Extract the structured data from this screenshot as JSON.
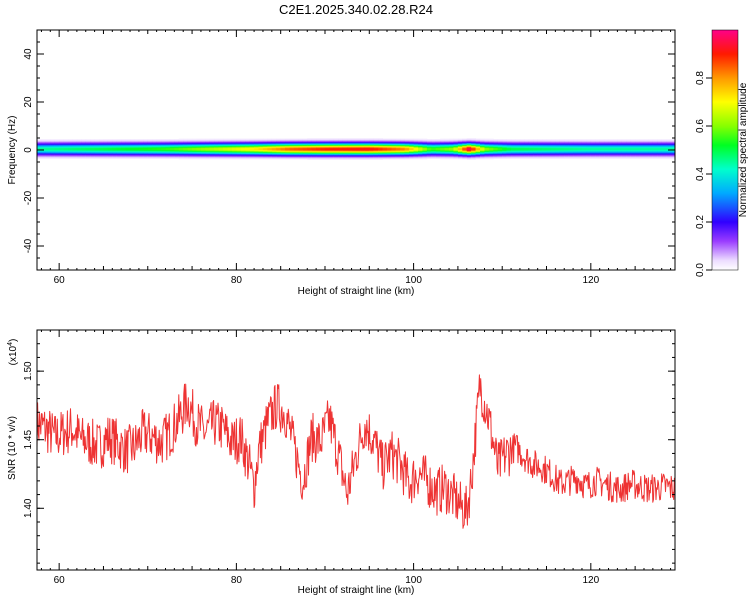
{
  "title": "C2E1.2025.340.02.28.R24",
  "chart_data": [
    {
      "type": "heatmap",
      "xlabel": "Height of straight line (km)",
      "ylabel": "Frequency (Hz)",
      "xlim": [
        57.5,
        129.5
      ],
      "ylim": [
        -50,
        50
      ],
      "x_ticks": [
        "60",
        "80",
        "100",
        "120"
      ],
      "y_ticks": [
        "40",
        "20",
        "0",
        "-20",
        "-40"
      ],
      "colorbar": {
        "label": "Normalized spectral amplitude",
        "range": [
          0,
          1
        ],
        "ticks": [
          "0.0",
          "0.2",
          "0.4",
          "0.6",
          "0.8"
        ]
      },
      "band": {
        "center_hz": 0.5,
        "halfwidth_hz": 3,
        "amplitude_profile": [
          {
            "x": 57.5,
            "v": 0.45
          },
          {
            "x": 65,
            "v": 0.5
          },
          {
            "x": 72,
            "v": 0.55
          },
          {
            "x": 78,
            "v": 0.65
          },
          {
            "x": 82,
            "v": 0.72
          },
          {
            "x": 86,
            "v": 0.85
          },
          {
            "x": 90,
            "v": 0.9
          },
          {
            "x": 95,
            "v": 0.92
          },
          {
            "x": 99,
            "v": 0.82
          },
          {
            "x": 102,
            "v": 0.55
          },
          {
            "x": 104.5,
            "v": 0.62
          },
          {
            "x": 106.3,
            "v": 0.97
          },
          {
            "x": 108,
            "v": 0.62
          },
          {
            "x": 111,
            "v": 0.5
          },
          {
            "x": 120,
            "v": 0.45
          },
          {
            "x": 129.5,
            "v": 0.45
          }
        ]
      }
    },
    {
      "type": "line",
      "xlabel": "Height of straight line (km)",
      "ylabel": "SNR (10 * v/v)",
      "yscale_label": "(x10",
      "yscale_exp": "4",
      "xlim": [
        57.5,
        129.5
      ],
      "ylim": [
        1.355,
        1.53
      ],
      "x_ticks": [
        "60",
        "80",
        "100",
        "120"
      ],
      "y_ticks": [
        "1.50",
        "1.45",
        "1.40"
      ],
      "series": [
        {
          "color": "#ee3333",
          "x": [
            57.5,
            58.5,
            59.5,
            60.5,
            61.5,
            62.5,
            63.5,
            64.5,
            65.5,
            66.5,
            67.5,
            68.5,
            69.5,
            70.5,
            71.5,
            72.5,
            73.5,
            74.5,
            75.5,
            76.5,
            77.5,
            78.5,
            79.5,
            80.5,
            81.5,
            82.0,
            82.5,
            83.5,
            84.5,
            85.5,
            86.5,
            87.5,
            88.5,
            89.5,
            90.5,
            91.5,
            92.5,
            93.5,
            94.5,
            95.5,
            96.5,
            97.5,
            98.5,
            99.5,
            100.5,
            101.5,
            102.5,
            103.5,
            104.5,
            105.5,
            106.0,
            106.5,
            107.0,
            107.5,
            108.5,
            109.5,
            110.5,
            111.5,
            112.5,
            113.5,
            114.5,
            115.5,
            116.5,
            117.5,
            118.5,
            119.5,
            120.5,
            121.5,
            122.5,
            123.5,
            124.5,
            125.5,
            126.5,
            127.5,
            128.5,
            129.5
          ],
          "y": [
            1.462,
            1.458,
            1.452,
            1.455,
            1.458,
            1.45,
            1.448,
            1.445,
            1.452,
            1.448,
            1.442,
            1.445,
            1.455,
            1.452,
            1.448,
            1.455,
            1.465,
            1.478,
            1.462,
            1.455,
            1.462,
            1.458,
            1.448,
            1.452,
            1.43,
            1.415,
            1.442,
            1.462,
            1.475,
            1.47,
            1.445,
            1.42,
            1.452,
            1.448,
            1.465,
            1.44,
            1.41,
            1.438,
            1.462,
            1.45,
            1.43,
            1.44,
            1.432,
            1.418,
            1.426,
            1.42,
            1.412,
            1.415,
            1.408,
            1.4,
            1.398,
            1.42,
            1.455,
            1.49,
            1.465,
            1.43,
            1.44,
            1.445,
            1.438,
            1.432,
            1.43,
            1.425,
            1.418,
            1.42,
            1.422,
            1.416,
            1.42,
            1.418,
            1.415,
            1.414,
            1.418,
            1.416,
            1.414,
            1.415,
            1.416,
            1.414
          ]
        }
      ]
    }
  ]
}
